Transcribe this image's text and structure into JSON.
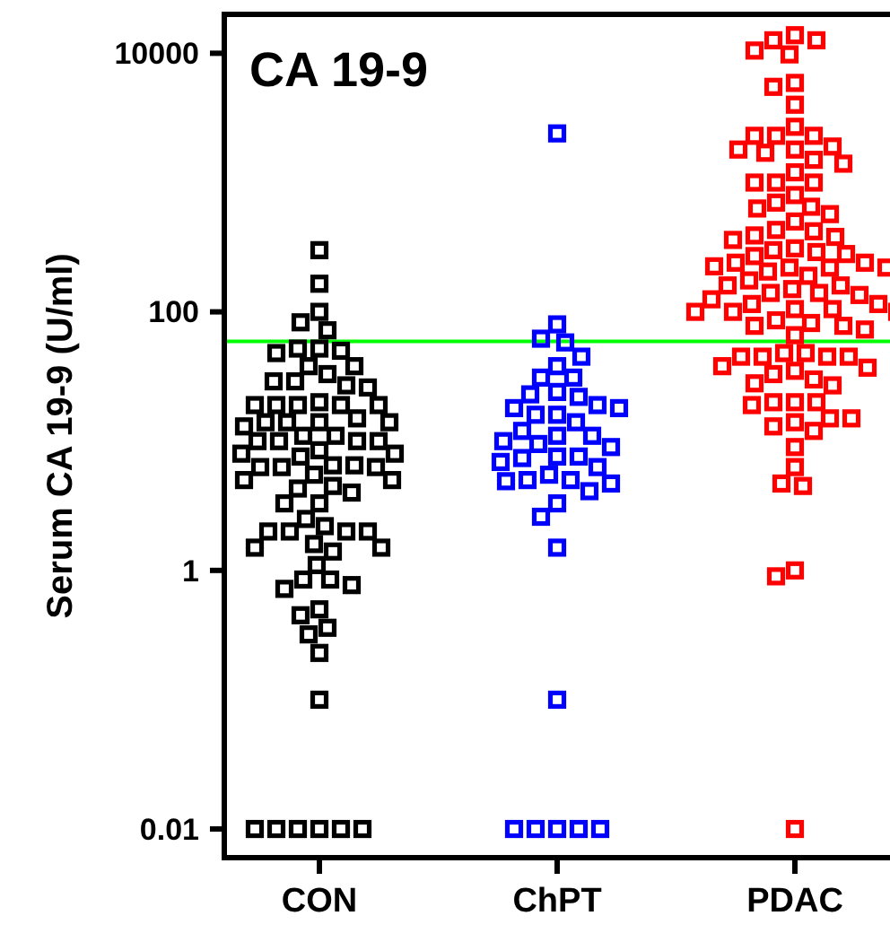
{
  "chart_data": {
    "type": "scatter",
    "title": "CA 19-9",
    "ylabel": "Serum CA 19-9 (U/ml)",
    "log": "y",
    "marker": "square",
    "categories": [
      "CON",
      "ChPT",
      "PDAC"
    ],
    "ylim": [
      0.006,
      20000
    ],
    "yticks": [
      0.01,
      1,
      100,
      10000
    ],
    "ref_lines": [
      {
        "axis": "y",
        "value": 59,
        "color": "#00ff00"
      }
    ],
    "series": [
      {
        "color": "#000000",
        "x": [
          "CON",
          "CON",
          "CON",
          "CON",
          "CON",
          "CON",
          "CON",
          "CON",
          "CON",
          "CON",
          "CON",
          "CON",
          "CON",
          "CON",
          "CON",
          "CON",
          "CON",
          "CON",
          "CON",
          "CON",
          "CON",
          "CON",
          "CON",
          "CON",
          "CON",
          "CON",
          "CON",
          "CON",
          "CON",
          "CON",
          "CON",
          "CON",
          "CON",
          "CON",
          "CON",
          "CON",
          "CON",
          "CON",
          "CON",
          "CON",
          "CON",
          "CON",
          "CON",
          "CON",
          "CON",
          "CON",
          "CON",
          "CON",
          "CON",
          "CON",
          "CON",
          "CON",
          "CON",
          "CON",
          "CON",
          "CON",
          "CON",
          "CON",
          "CON",
          "CON",
          "CON",
          "CON",
          "CON",
          "CON",
          "CON",
          "CON",
          "CON",
          "CON",
          "CON",
          "CON",
          "CON",
          "CON",
          "CON",
          "CON",
          "CON",
          "CON",
          "CON",
          "CON"
        ],
        "values": [
          300,
          165,
          100,
          83,
          72,
          52,
          48,
          52,
          50,
          38,
          38,
          33,
          29,
          29,
          27,
          26,
          19,
          20,
          19,
          19,
          19,
          19,
          13,
          14,
          15,
          14,
          14,
          14,
          11,
          10,
          10,
          10,
          11,
          10,
          8,
          8.5,
          7.6,
          8,
          6.3,
          6.5,
          6.3,
          6.5,
          6.3,
          5,
          5.5,
          5,
          4.5,
          4.3,
          4,
          3.3,
          3.3,
          2.5,
          2,
          1.5,
          2,
          2,
          1.6,
          2,
          1.5,
          1.4,
          2.2,
          1.1,
          0.85,
          0.77,
          0.85,
          0.72,
          0.5,
          0.45,
          0.36,
          0.32,
          0.23,
          0.1,
          0.01,
          0.01,
          0.01,
          0.01,
          0.01,
          0.01
        ]
      },
      {
        "color": "#0000ff",
        "x": [
          "ChPT",
          "ChPT",
          "ChPT",
          "ChPT",
          "ChPT",
          "ChPT",
          "ChPT",
          "ChPT",
          "ChPT",
          "ChPT",
          "ChPT",
          "ChPT",
          "ChPT",
          "ChPT",
          "ChPT",
          "ChPT",
          "ChPT",
          "ChPT",
          "ChPT",
          "ChPT",
          "ChPT",
          "ChPT",
          "ChPT",
          "ChPT",
          "ChPT",
          "ChPT",
          "ChPT",
          "ChPT",
          "ChPT",
          "ChPT",
          "ChPT",
          "ChPT",
          "ChPT",
          "ChPT",
          "ChPT",
          "ChPT",
          "ChPT",
          "ChPT",
          "ChPT",
          "ChPT",
          "ChPT",
          "ChPT",
          "ChPT"
        ],
        "values": [
          2400,
          80,
          62,
          45,
          58,
          38,
          31,
          31,
          23,
          24,
          19,
          22,
          16,
          18,
          18,
          14,
          16,
          12,
          11,
          11,
          9.5,
          10,
          9,
          7.6,
          7.4,
          7.6,
          6.3,
          6.9,
          5.5,
          5,
          4.7,
          5,
          4.9,
          4.1,
          3.3,
          2.6,
          1.5,
          0.1,
          0.01,
          0.01,
          0.01,
          0.01,
          0.01
        ]
      },
      {
        "color": "#ff0000",
        "x": [
          "PDAC",
          "PDAC",
          "PDAC",
          "PDAC",
          "PDAC",
          "PDAC",
          "PDAC",
          "PDAC",
          "PDAC",
          "PDAC",
          "PDAC",
          "PDAC",
          "PDAC",
          "PDAC",
          "PDAC",
          "PDAC",
          "PDAC",
          "PDAC",
          "PDAC",
          "PDAC",
          "PDAC",
          "PDAC",
          "PDAC",
          "PDAC",
          "PDAC",
          "PDAC",
          "PDAC",
          "PDAC",
          "PDAC",
          "PDAC",
          "PDAC",
          "PDAC",
          "PDAC",
          "PDAC",
          "PDAC",
          "PDAC",
          "PDAC",
          "PDAC",
          "PDAC",
          "PDAC",
          "PDAC",
          "PDAC",
          "PDAC",
          "PDAC",
          "PDAC",
          "PDAC",
          "PDAC",
          "PDAC",
          "PDAC",
          "PDAC",
          "PDAC",
          "PDAC",
          "PDAC",
          "PDAC",
          "PDAC",
          "PDAC",
          "PDAC",
          "PDAC",
          "PDAC",
          "PDAC",
          "PDAC",
          "PDAC",
          "PDAC",
          "PDAC",
          "PDAC",
          "PDAC",
          "PDAC",
          "PDAC",
          "PDAC",
          "PDAC",
          "PDAC",
          "PDAC",
          "PDAC",
          "PDAC",
          "PDAC",
          "PDAC",
          "PDAC",
          "PDAC",
          "PDAC",
          "PDAC",
          "PDAC",
          "PDAC",
          "PDAC",
          "PDAC",
          "PDAC",
          "PDAC",
          "PDAC",
          "PDAC",
          "PDAC",
          "PDAC",
          "PDAC",
          "PDAC",
          "PDAC",
          "PDAC",
          "PDAC",
          "PDAC"
        ],
        "values": [
          12600,
          12600,
          13800,
          9800,
          10500,
          5900,
          5500,
          4000,
          2300,
          2700,
          2300,
          2300,
          1700,
          1900,
          1800,
          1500,
          1800,
          1200,
          1000,
          1400,
          1000,
          1000,
          800,
          700,
          630,
          650,
          570,
          500,
          420,
          430,
          390,
          360,
          380,
          300,
          310,
          280,
          290,
          270,
          240,
          225,
          220,
          205,
          220,
          240,
          220,
          190,
          175,
          160,
          140,
          150,
          160,
          135,
          140,
          125,
          115,
          100,
          105,
          105,
          100,
          115,
          100,
          86,
          73,
          78,
          82,
          78,
          66,
          48,
          45,
          45,
          45,
          48,
          45,
          37,
          30,
          38,
          35,
          33,
          28,
          27,
          20,
          20,
          19,
          20,
          15,
          15,
          13,
          12,
          14,
          9,
          6.3,
          4.7,
          4.5,
          0.9,
          1.0,
          0.01
        ]
      }
    ]
  }
}
